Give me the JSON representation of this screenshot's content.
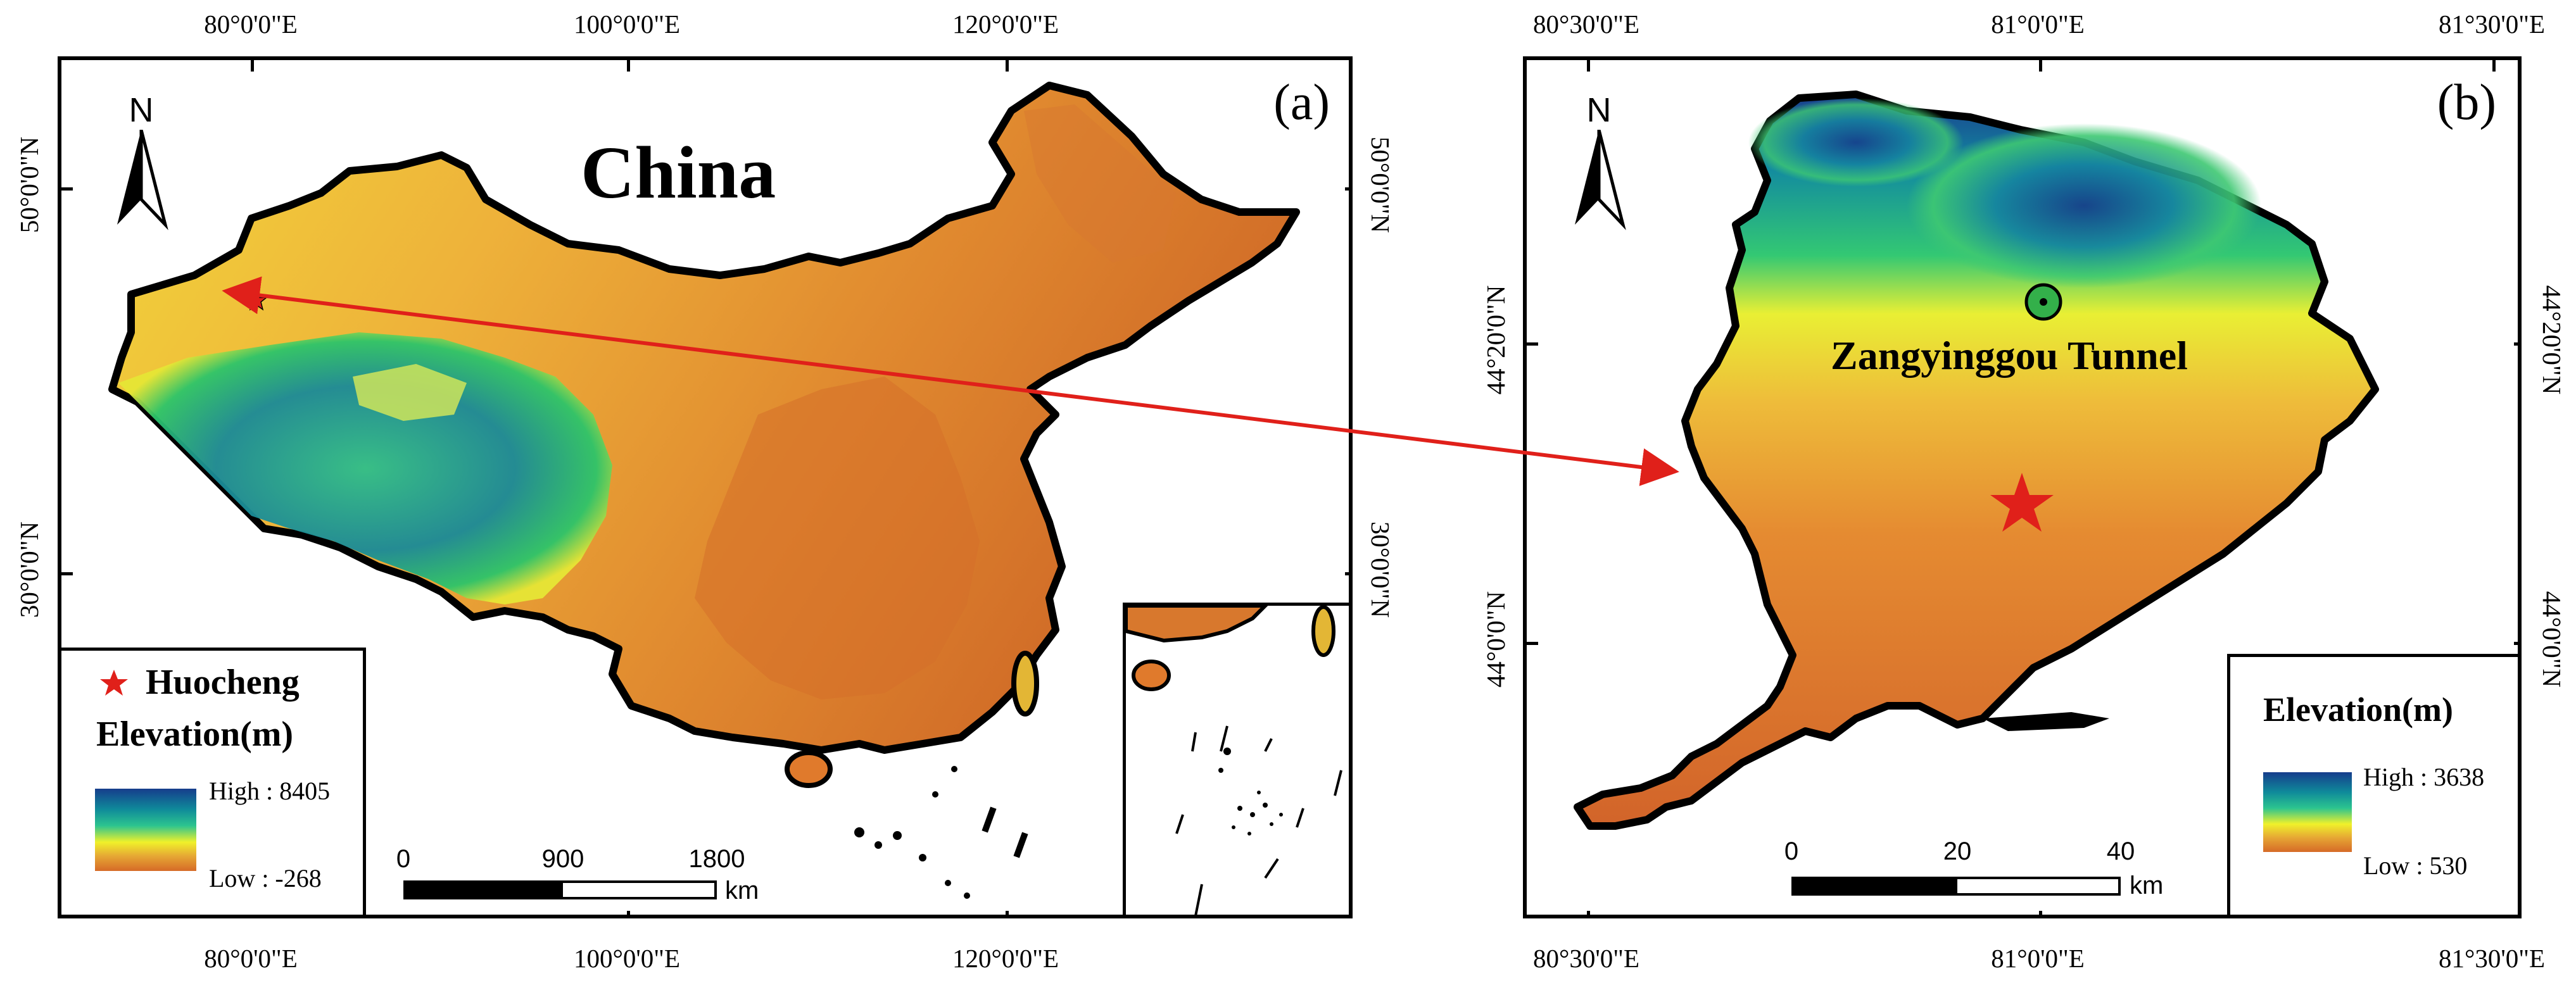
{
  "panel_a": {
    "label": "(a)",
    "title": "China",
    "north_label": "N",
    "lon_labels": [
      "80°0'0\"E",
      "100°0'0\"E",
      "120°0'0\"E"
    ],
    "lat_labels": [
      "50°0'0\"N",
      "30°0'0\"N"
    ],
    "legend": {
      "marker_label": "Huocheng",
      "title": "Elevation(m)",
      "high": "High : 8405",
      "low": "Low : -268"
    },
    "scalebar": {
      "ticks": [
        "0",
        "900",
        "1800"
      ],
      "unit": "km"
    }
  },
  "panel_b": {
    "label": "(b)",
    "north_label": "N",
    "lon_labels": [
      "80°30'0\"E",
      "81°0'0\"E",
      "81°30'0\"E"
    ],
    "lat_labels": [
      "44°20'0\"N",
      "44°0'0\"N"
    ],
    "feature_label": "Zangyinggou Tunnel",
    "legend": {
      "title": "Elevation(m)",
      "high": "High : 3638",
      "low": "Low : 530"
    },
    "scalebar": {
      "ticks": [
        "0",
        "20",
        "40"
      ],
      "unit": "km"
    }
  },
  "colors": {
    "ramp_high": "#163d8c",
    "ramp_mid": "#f0f12a",
    "ramp_low": "#d66a27",
    "marker": "#e0201a",
    "arrow": "#e0201a"
  },
  "icons": [
    "north-arrow-icon",
    "star-icon",
    "tunnel-circle-icon"
  ]
}
